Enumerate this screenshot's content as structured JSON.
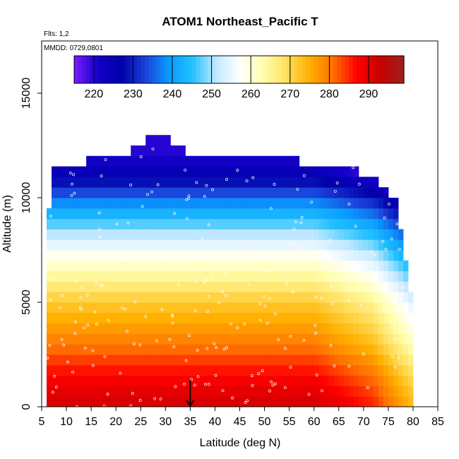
{
  "chart_data": {
    "type": "heatmap",
    "title": "ATOM1 Northeast_Pacific T",
    "annotations": {
      "flights": "Flts: 1,2",
      "dates": "MMDD: 0729,0801"
    },
    "xlabel": "Latitude (deg N)",
    "ylabel": "Altitude (m)",
    "xlim": [
      5,
      85
    ],
    "ylim": [
      0,
      17500
    ],
    "xticks": [
      5,
      10,
      15,
      20,
      25,
      30,
      35,
      40,
      45,
      50,
      55,
      60,
      65,
      70,
      75,
      80,
      85
    ],
    "yticks": [
      0,
      5000,
      10000,
      15000
    ],
    "colorbar": {
      "range": [
        215,
        299
      ],
      "ticks": [
        220,
        230,
        240,
        250,
        260,
        270,
        280,
        290
      ],
      "colors": [
        "#7a1cff",
        "#1400c8",
        "#0000a8",
        "#1a3fd8",
        "#0a9aff",
        "#20c0ff",
        "#bfe8ff",
        "#ffffff",
        "#ffffb0",
        "#ffe060",
        "#ffb000",
        "#ff7000",
        "#ff0000",
        "#c80000",
        "#a02020"
      ]
    },
    "colored_region": {
      "cell_size": {
        "lat": 1,
        "alt": 500
      },
      "top_boundary": [
        {
          "lat": 5,
          "alt": 0
        },
        {
          "lat": 6,
          "alt": 9500
        },
        {
          "lat": 7,
          "alt": 11500
        },
        {
          "lat": 14,
          "alt": 11500
        },
        {
          "lat": 14,
          "alt": 12000
        },
        {
          "lat": 23,
          "alt": 12000
        },
        {
          "lat": 23,
          "alt": 12500
        },
        {
          "lat": 26,
          "alt": 12500
        },
        {
          "lat": 26,
          "alt": 13000
        },
        {
          "lat": 31,
          "alt": 13000
        },
        {
          "lat": 31,
          "alt": 12500
        },
        {
          "lat": 34,
          "alt": 12500
        },
        {
          "lat": 34,
          "alt": 12000
        },
        {
          "lat": 57,
          "alt": 12000
        },
        {
          "lat": 57,
          "alt": 11500
        },
        {
          "lat": 69,
          "alt": 11500
        },
        {
          "lat": 69,
          "alt": 11000
        },
        {
          "lat": 73,
          "alt": 11000
        },
        {
          "lat": 73,
          "alt": 10500
        },
        {
          "lat": 75,
          "alt": 10500
        },
        {
          "lat": 75,
          "alt": 10000
        },
        {
          "lat": 77,
          "alt": 10000
        },
        {
          "lat": 77,
          "alt": 8500
        },
        {
          "lat": 78,
          "alt": 8500
        },
        {
          "lat": 78,
          "alt": 7000
        },
        {
          "lat": 79,
          "alt": 7000
        },
        {
          "lat": 79,
          "alt": 5500
        },
        {
          "lat": 80,
          "alt": 5500
        },
        {
          "lat": 80,
          "alt": 0
        }
      ],
      "temperature_profile_by_altitude": [
        {
          "alt": 0,
          "t": 292
        },
        {
          "alt": 1000,
          "t": 289
        },
        {
          "alt": 2000,
          "t": 285
        },
        {
          "alt": 3000,
          "t": 280
        },
        {
          "alt": 4000,
          "t": 276
        },
        {
          "alt": 5000,
          "t": 272
        },
        {
          "alt": 6000,
          "t": 266
        },
        {
          "alt": 7000,
          "t": 260
        },
        {
          "alt": 8000,
          "t": 253
        },
        {
          "alt": 9000,
          "t": 245
        },
        {
          "alt": 10000,
          "t": 236
        },
        {
          "alt": 11000,
          "t": 226
        },
        {
          "alt": 12000,
          "t": 220
        },
        {
          "alt": 13000,
          "t": 220
        }
      ]
    },
    "arrow_marker": {
      "lat": 35,
      "alt_from": 600,
      "alt_to": 0
    }
  }
}
